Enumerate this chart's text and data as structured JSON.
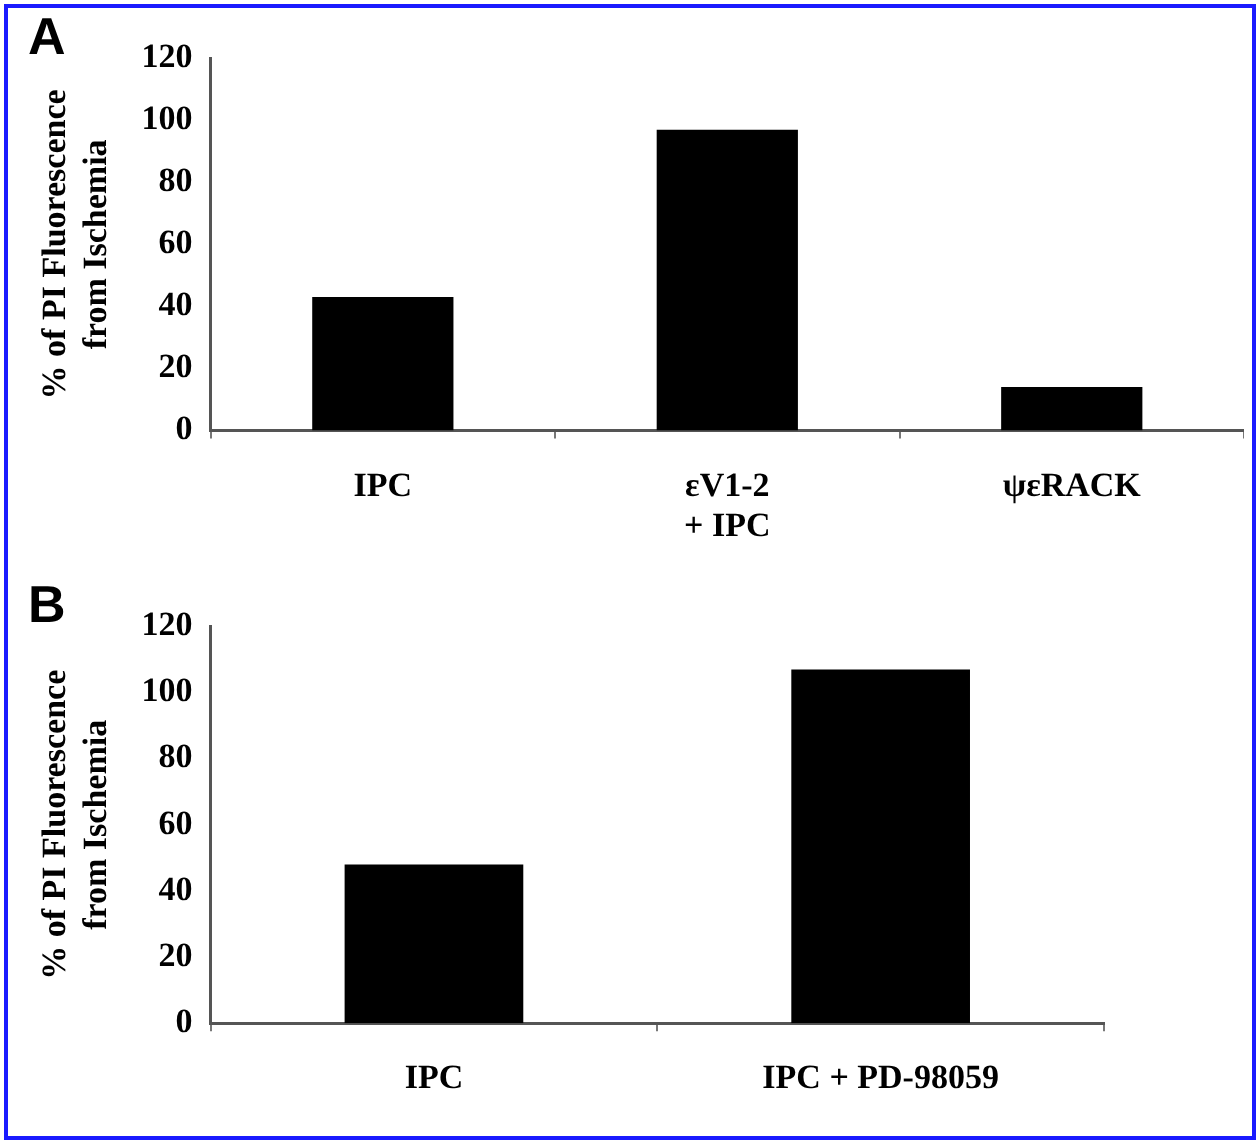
{
  "chart_data": [
    {
      "type": "bar",
      "title": "A",
      "ylabel": "% of PI Fluorescence\nfrom Ischemia",
      "categories": [
        "IPC",
        "εV1-2\n+ IPC",
        "ψεRACK"
      ],
      "values": [
        43,
        97,
        14
      ],
      "color": "#000000",
      "ylim": [
        0,
        120
      ],
      "yticks": [
        0,
        20,
        40,
        60,
        80,
        100,
        120
      ],
      "grid": false
    },
    {
      "type": "bar",
      "title": "B",
      "ylabel": "% of PI Fluorescence\nfrom Ischemia",
      "categories": [
        "IPC",
        "IPC + PD-98059"
      ],
      "values": [
        48,
        107
      ],
      "color": "#000000",
      "ylim": [
        0,
        120
      ],
      "yticks": [
        0,
        20,
        40,
        60,
        80,
        100,
        120
      ],
      "grid": false
    }
  ]
}
